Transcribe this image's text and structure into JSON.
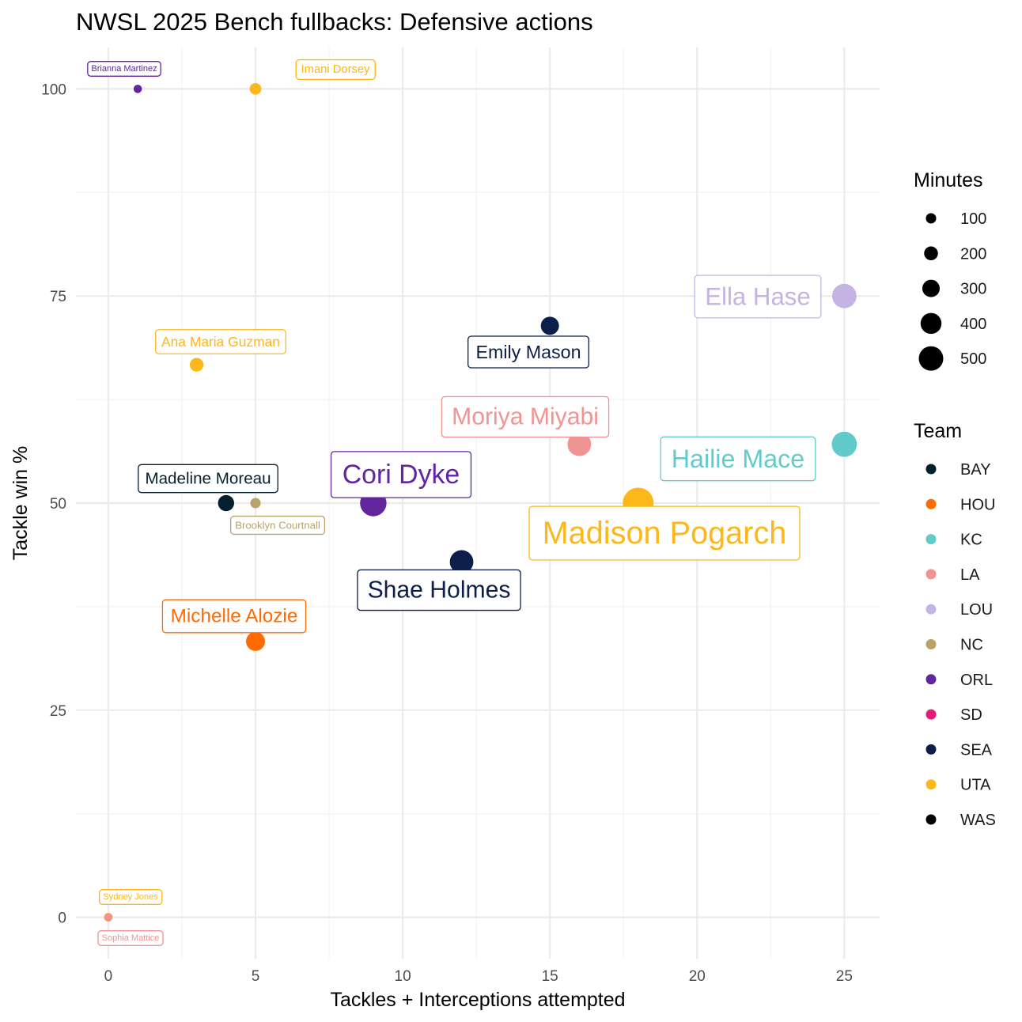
{
  "chart_data": {
    "type": "scatter",
    "title": "NWSL 2025 Bench fullbacks: Defensive actions",
    "xlabel": "Tackles + Interceptions attempted",
    "ylabel": "Tackle win %",
    "xlim": [
      -1.1,
      26.2
    ],
    "ylim": [
      -5,
      105
    ],
    "x_ticks": [
      0,
      5,
      10,
      15,
      20,
      25
    ],
    "y_ticks": [
      0,
      25,
      50,
      75,
      100
    ],
    "grid": true,
    "points": [
      {
        "name": "Brianna Martinez",
        "team": "ORL",
        "x": 1,
        "y": 100,
        "minutes": 10
      },
      {
        "name": "Imani Dorsey",
        "team": "UTA",
        "x": 5,
        "y": 100,
        "minutes": 90
      },
      {
        "name": "Ella Hase",
        "team": "LOU",
        "x": 25,
        "y": 75,
        "minutes": 400
      },
      {
        "name": "Emily Mason",
        "team": "SEA",
        "x": 15,
        "y": 71.4,
        "minutes": 250
      },
      {
        "name": "Ana Maria Guzman",
        "team": "UTA",
        "x": 3,
        "y": 66.7,
        "minutes": 140
      },
      {
        "name": "Moriya Miyabi",
        "team": "LA",
        "x": 16,
        "y": 57.1,
        "minutes": 380
      },
      {
        "name": "Hailie Mace",
        "team": "KC",
        "x": 25,
        "y": 57.1,
        "minutes": 420
      },
      {
        "name": "Madeline Moreau",
        "team": "BAY",
        "x": 4,
        "y": 50,
        "minutes": 200
      },
      {
        "name": "Brooklyn Courtnall",
        "team": "NC",
        "x": 5,
        "y": 50,
        "minutes": 60
      },
      {
        "name": "Cori Dyke",
        "team": "ORL",
        "x": 9,
        "y": 50,
        "minutes": 450
      },
      {
        "name": "Madison Pogarch",
        "team": "UTA",
        "x": 18,
        "y": 50,
        "minutes": 560
      },
      {
        "name": "Shae Holmes",
        "team": "SEA",
        "x": 12,
        "y": 42.9,
        "minutes": 380
      },
      {
        "name": "Michelle Alozie",
        "team": "HOU",
        "x": 5,
        "y": 33.3,
        "minutes": 270
      },
      {
        "name": "Sydney Jones",
        "team": "UTA",
        "x": 0,
        "y": 0,
        "minutes": 20
      },
      {
        "name": "Sophia Mattice",
        "team": "LA",
        "x": 0,
        "y": 0,
        "minutes": 5
      }
    ],
    "legend_size": {
      "title": "Minutes",
      "values": [
        100,
        200,
        300,
        400,
        500
      ],
      "labels": [
        "100",
        "200",
        "300",
        "400",
        "500"
      ]
    },
    "legend_color": {
      "title": "Team",
      "teams": [
        {
          "label": "BAY",
          "color": "#061f2e"
        },
        {
          "label": "HOU",
          "color": "#ff6b00"
        },
        {
          "label": "KC",
          "color": "#62cbc9"
        },
        {
          "label": "LA",
          "color": "#ef9492"
        },
        {
          "label": "LOU",
          "color": "#c5b4e3"
        },
        {
          "label": "NC",
          "color": "#b9a36d"
        },
        {
          "label": "ORL",
          "color": "#61259e"
        },
        {
          "label": "SD",
          "color": "#e31c79"
        },
        {
          "label": "SEA",
          "color": "#0b1f4a"
        },
        {
          "label": "UTA",
          "color": "#fdb71a"
        },
        {
          "label": "WAS",
          "color": "#000000"
        }
      ]
    }
  }
}
